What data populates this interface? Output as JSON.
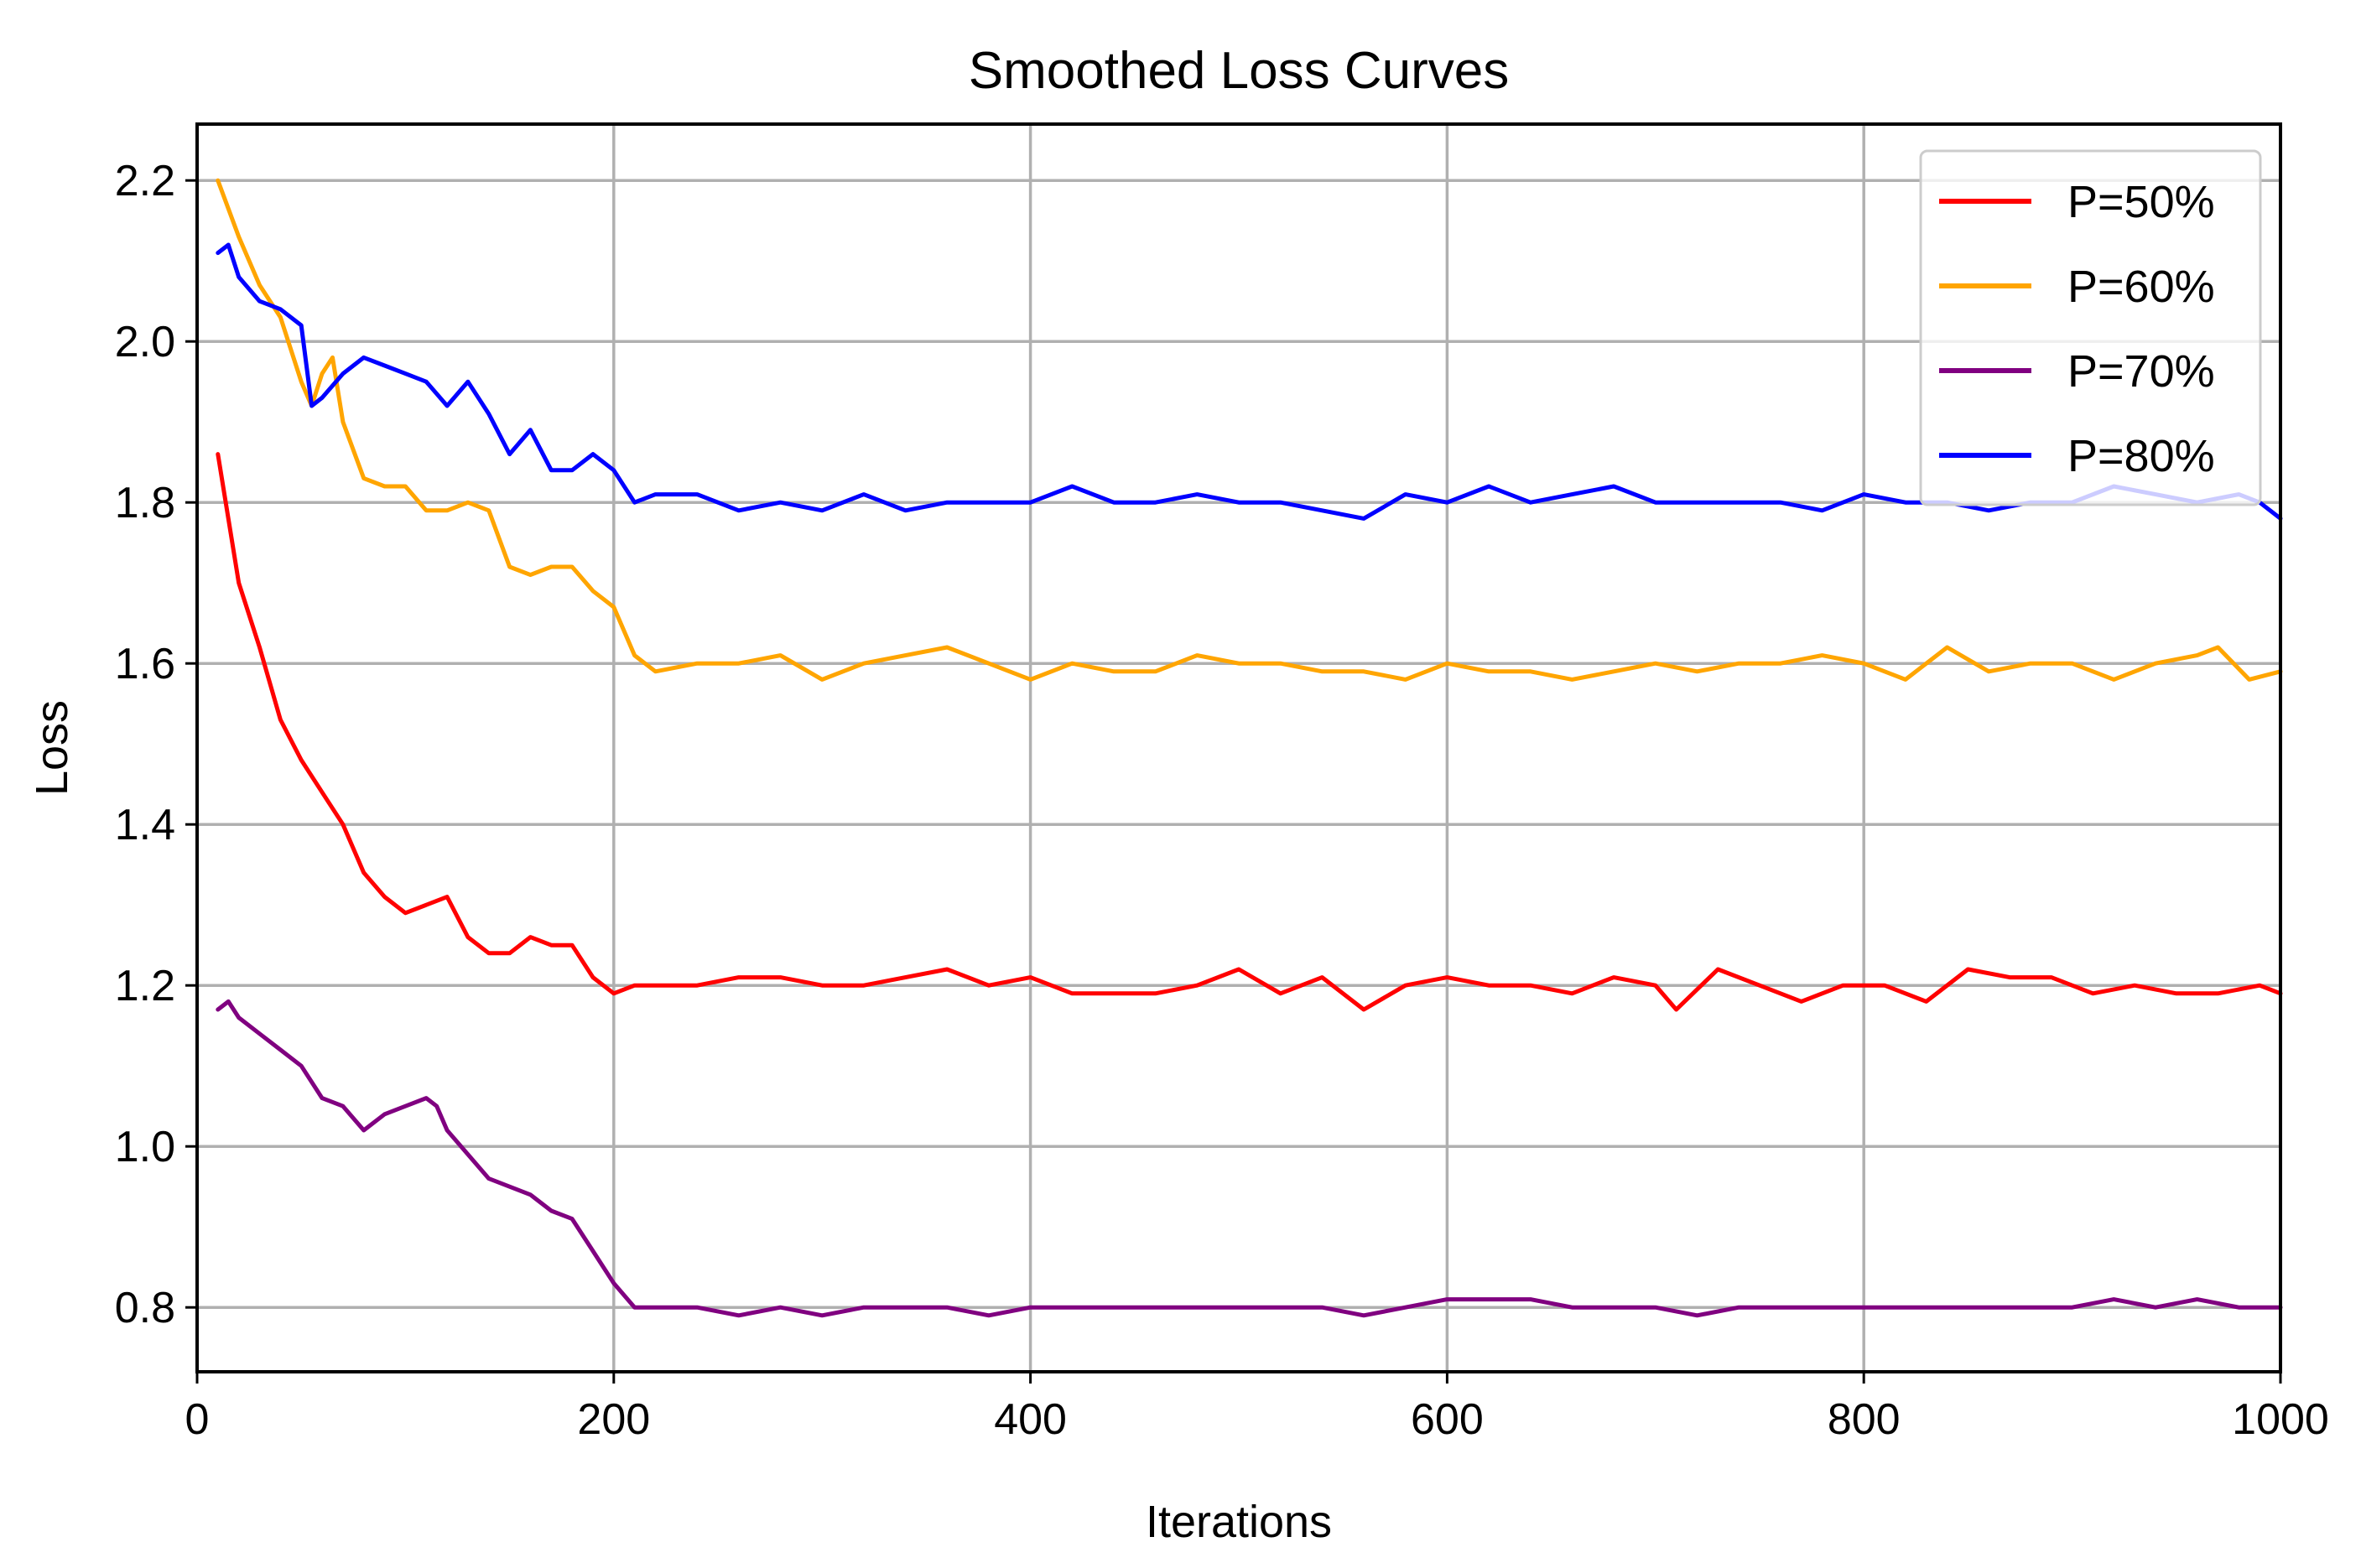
{
  "chart_data": {
    "type": "line",
    "title": "Smoothed Loss Curves",
    "xlabel": "Iterations",
    "ylabel": "Loss",
    "xlim": [
      0,
      1000
    ],
    "ylim": [
      0.72,
      2.27
    ],
    "xticks": [
      0,
      200,
      400,
      600,
      800,
      1000
    ],
    "xtick_labels": [
      "0",
      "200",
      "400",
      "600",
      "800",
      "1000"
    ],
    "yticks": [
      0.8,
      1.0,
      1.2,
      1.4,
      1.6,
      1.8,
      2.0,
      2.2
    ],
    "ytick_labels": [
      "0.8",
      "1.0",
      "1.2",
      "1.4",
      "1.6",
      "1.8",
      "2.0",
      "2.2"
    ],
    "grid": true,
    "legend_position": "top-right",
    "series": [
      {
        "name": "P=50%",
        "color": "#ff0000",
        "x": [
          10,
          20,
          30,
          40,
          50,
          60,
          70,
          80,
          90,
          100,
          110,
          120,
          130,
          140,
          150,
          160,
          170,
          180,
          190,
          200,
          210,
          220,
          240,
          260,
          280,
          300,
          320,
          340,
          360,
          380,
          400,
          420,
          440,
          460,
          480,
          500,
          520,
          540,
          560,
          580,
          600,
          620,
          640,
          660,
          680,
          700,
          710,
          730,
          750,
          770,
          790,
          810,
          830,
          850,
          870,
          890,
          910,
          930,
          950,
          970,
          990,
          1000
        ],
        "values": [
          1.86,
          1.7,
          1.62,
          1.53,
          1.48,
          1.44,
          1.4,
          1.34,
          1.31,
          1.29,
          1.3,
          1.31,
          1.26,
          1.24,
          1.24,
          1.26,
          1.25,
          1.25,
          1.21,
          1.19,
          1.2,
          1.2,
          1.2,
          1.21,
          1.21,
          1.2,
          1.2,
          1.21,
          1.22,
          1.2,
          1.21,
          1.19,
          1.19,
          1.19,
          1.2,
          1.22,
          1.19,
          1.21,
          1.17,
          1.2,
          1.21,
          1.2,
          1.2,
          1.19,
          1.21,
          1.2,
          1.17,
          1.22,
          1.2,
          1.18,
          1.2,
          1.2,
          1.18,
          1.22,
          1.21,
          1.21,
          1.19,
          1.2,
          1.19,
          1.19,
          1.2,
          1.19
        ]
      },
      {
        "name": "P=60%",
        "color": "#ffa500",
        "x": [
          10,
          20,
          30,
          40,
          50,
          55,
          60,
          65,
          70,
          80,
          90,
          100,
          110,
          120,
          130,
          140,
          150,
          160,
          170,
          180,
          190,
          200,
          210,
          220,
          240,
          260,
          280,
          300,
          320,
          340,
          360,
          380,
          400,
          420,
          440,
          460,
          480,
          500,
          520,
          540,
          560,
          580,
          600,
          620,
          640,
          660,
          680,
          700,
          720,
          740,
          760,
          780,
          800,
          820,
          840,
          860,
          880,
          900,
          920,
          940,
          960,
          970,
          985,
          1000
        ],
        "values": [
          2.2,
          2.13,
          2.07,
          2.03,
          1.95,
          1.92,
          1.96,
          1.98,
          1.9,
          1.83,
          1.82,
          1.82,
          1.79,
          1.79,
          1.8,
          1.79,
          1.72,
          1.71,
          1.72,
          1.72,
          1.69,
          1.67,
          1.61,
          1.59,
          1.6,
          1.6,
          1.61,
          1.58,
          1.6,
          1.61,
          1.62,
          1.6,
          1.58,
          1.6,
          1.59,
          1.59,
          1.61,
          1.6,
          1.6,
          1.59,
          1.59,
          1.58,
          1.6,
          1.59,
          1.59,
          1.58,
          1.59,
          1.6,
          1.59,
          1.6,
          1.6,
          1.61,
          1.6,
          1.58,
          1.62,
          1.59,
          1.6,
          1.6,
          1.58,
          1.6,
          1.61,
          1.62,
          1.58,
          1.59
        ]
      },
      {
        "name": "P=70%",
        "color": "#800080",
        "x": [
          10,
          15,
          20,
          30,
          40,
          50,
          60,
          70,
          80,
          90,
          100,
          110,
          115,
          120,
          130,
          140,
          150,
          160,
          170,
          180,
          190,
          200,
          210,
          220,
          240,
          260,
          280,
          300,
          320,
          340,
          360,
          380,
          400,
          420,
          440,
          460,
          480,
          500,
          520,
          540,
          560,
          580,
          600,
          620,
          640,
          660,
          680,
          700,
          720,
          740,
          760,
          780,
          800,
          820,
          840,
          860,
          880,
          900,
          920,
          940,
          960,
          980,
          1000
        ],
        "values": [
          1.17,
          1.18,
          1.16,
          1.14,
          1.12,
          1.1,
          1.06,
          1.05,
          1.02,
          1.04,
          1.05,
          1.06,
          1.05,
          1.02,
          0.99,
          0.96,
          0.95,
          0.94,
          0.92,
          0.91,
          0.87,
          0.83,
          0.8,
          0.8,
          0.8,
          0.79,
          0.8,
          0.79,
          0.8,
          0.8,
          0.8,
          0.79,
          0.8,
          0.8,
          0.8,
          0.8,
          0.8,
          0.8,
          0.8,
          0.8,
          0.79,
          0.8,
          0.81,
          0.81,
          0.81,
          0.8,
          0.8,
          0.8,
          0.79,
          0.8,
          0.8,
          0.8,
          0.8,
          0.8,
          0.8,
          0.8,
          0.8,
          0.8,
          0.81,
          0.8,
          0.81,
          0.8,
          0.8
        ]
      },
      {
        "name": "P=80%",
        "color": "#0000ff",
        "x": [
          10,
          15,
          20,
          30,
          40,
          50,
          55,
          60,
          70,
          80,
          90,
          100,
          110,
          120,
          130,
          140,
          150,
          160,
          170,
          180,
          190,
          200,
          210,
          220,
          240,
          260,
          280,
          300,
          320,
          340,
          360,
          380,
          400,
          420,
          440,
          460,
          480,
          500,
          520,
          540,
          560,
          580,
          600,
          620,
          640,
          660,
          680,
          700,
          720,
          740,
          760,
          780,
          800,
          820,
          840,
          860,
          880,
          900,
          920,
          940,
          960,
          980,
          990,
          1000
        ],
        "values": [
          2.11,
          2.12,
          2.08,
          2.05,
          2.04,
          2.02,
          1.92,
          1.93,
          1.96,
          1.98,
          1.97,
          1.96,
          1.95,
          1.92,
          1.95,
          1.91,
          1.86,
          1.89,
          1.84,
          1.84,
          1.86,
          1.84,
          1.8,
          1.81,
          1.81,
          1.79,
          1.8,
          1.79,
          1.81,
          1.79,
          1.8,
          1.8,
          1.8,
          1.82,
          1.8,
          1.8,
          1.81,
          1.8,
          1.8,
          1.79,
          1.78,
          1.81,
          1.8,
          1.82,
          1.8,
          1.81,
          1.82,
          1.8,
          1.8,
          1.8,
          1.8,
          1.79,
          1.81,
          1.8,
          1.8,
          1.79,
          1.8,
          1.8,
          1.82,
          1.81,
          1.8,
          1.81,
          1.8,
          1.78
        ]
      }
    ]
  }
}
